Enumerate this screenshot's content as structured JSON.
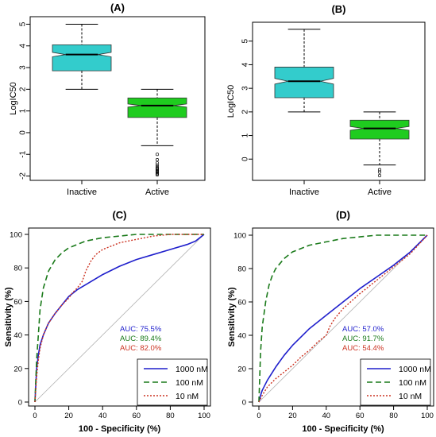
{
  "colors": {
    "cyan": "#33cccc",
    "green": "#1fcc1f",
    "blue": "#1f1fcc",
    "darkgreen": "#1a7a1a",
    "red": "#cc3322",
    "axis": "#000000",
    "diag": "#b0b0b0"
  },
  "chart_data": [
    {
      "panel": "(A)",
      "type": "box",
      "ylabel": "LogIC50",
      "ylim": [
        -2.2,
        5.2
      ],
      "yticks": [
        "-2",
        "-1",
        "0",
        "1",
        "2",
        "3",
        "4",
        "5"
      ],
      "notched": true,
      "categories": [
        "Inactive",
        "Active"
      ],
      "boxes": [
        {
          "category": "Inactive",
          "color": "cyan",
          "min": 2.0,
          "q1": 2.85,
          "median": 3.6,
          "q3": 4.05,
          "max": 5.0,
          "notch": [
            3.5,
            3.7
          ],
          "outliers": []
        },
        {
          "category": "Active",
          "color": "green",
          "min": -0.6,
          "q1": 0.7,
          "median": 1.25,
          "q3": 1.6,
          "max": 2.0,
          "notch": [
            1.18,
            1.32
          ],
          "outliers": [
            -1.0,
            -1.25,
            -1.4,
            -1.5,
            -1.58,
            -1.65,
            -1.7,
            -1.75,
            -1.8,
            -1.85,
            -1.9,
            -1.95
          ]
        }
      ]
    },
    {
      "panel": "(B)",
      "type": "box",
      "ylabel": "LogIC50",
      "ylim": [
        -0.8,
        5.8
      ],
      "yticks": [
        "0",
        "1",
        "2",
        "3",
        "4",
        "5"
      ],
      "notched": true,
      "categories": [
        "Inactive",
        "Active"
      ],
      "boxes": [
        {
          "category": "Inactive",
          "color": "cyan",
          "min": 2.0,
          "q1": 2.6,
          "median": 3.3,
          "q3": 3.9,
          "max": 5.5,
          "notch": [
            3.18,
            3.42
          ],
          "outliers": []
        },
        {
          "category": "Active",
          "color": "green",
          "min": -0.25,
          "q1": 0.85,
          "median": 1.3,
          "q3": 1.65,
          "max": 2.0,
          "notch": [
            1.22,
            1.38
          ],
          "outliers": [
            -0.45,
            -0.55,
            -0.7
          ]
        }
      ]
    },
    {
      "panel": "(C)",
      "type": "line",
      "xlabel": "100 - Specificity (%)",
      "ylabel": "Sensitivity (%)",
      "xlim": [
        0,
        100
      ],
      "ylim": [
        0,
        100
      ],
      "xticks": [
        "0",
        "20",
        "40",
        "60",
        "80",
        "100"
      ],
      "yticks": [
        "0",
        "20",
        "40",
        "60",
        "80",
        "100"
      ],
      "auc": [
        "AUC: 75.5%",
        "AUC: 89.4%",
        "AUC: 82.0%"
      ],
      "legend": [
        "1000 nM",
        "100 nM",
        "10 nM"
      ],
      "legend_position": "bottom-right",
      "series": [
        {
          "name": "1000 nM",
          "color": "blue",
          "style": "solid",
          "x": [
            0,
            1,
            2,
            3,
            5,
            8,
            12,
            16,
            20,
            25,
            30,
            40,
            50,
            60,
            70,
            80,
            90,
            95,
            100
          ],
          "y": [
            0,
            20,
            28,
            34,
            40,
            47,
            53,
            58,
            63,
            67,
            70,
            76,
            81,
            85,
            88,
            91,
            94,
            96,
            100
          ]
        },
        {
          "name": "100 nM",
          "color": "darkgreen",
          "style": "dashed",
          "x": [
            0,
            1,
            2,
            3,
            5,
            8,
            12,
            16,
            20,
            25,
            30,
            40,
            50,
            60,
            70,
            80,
            100
          ],
          "y": [
            0,
            25,
            40,
            55,
            68,
            78,
            85,
            89,
            92,
            94,
            96,
            98,
            99,
            100,
            100,
            100,
            100
          ]
        },
        {
          "name": "10 nM",
          "color": "red",
          "style": "dotted",
          "x": [
            0,
            1,
            2,
            3,
            5,
            8,
            12,
            16,
            20,
            22,
            25,
            28,
            30,
            33,
            36,
            40,
            45,
            50,
            55,
            60,
            65,
            70,
            80,
            90,
            100
          ],
          "y": [
            0,
            15,
            25,
            32,
            40,
            47,
            53,
            58,
            62,
            65,
            68,
            72,
            78,
            84,
            88,
            91,
            93,
            95,
            96,
            97,
            98,
            99,
            100,
            100,
            100
          ]
        }
      ]
    },
    {
      "panel": "(D)",
      "type": "line",
      "xlabel": "100 - Specificity (%)",
      "ylabel": "Sensitivity (%)",
      "xlim": [
        0,
        100
      ],
      "ylim": [
        0,
        100
      ],
      "xticks": [
        "0",
        "20",
        "40",
        "60",
        "80",
        "100"
      ],
      "yticks": [
        "0",
        "20",
        "40",
        "60",
        "80",
        "100"
      ],
      "auc": [
        "AUC: 57.0%",
        "AUC: 91.7%",
        "AUC: 54.4%"
      ],
      "legend": [
        "1000 nM",
        "100 nM",
        "10 nM"
      ],
      "legend_position": "bottom-right",
      "series": [
        {
          "name": "1000 nM",
          "color": "blue",
          "style": "solid",
          "x": [
            0,
            1,
            2,
            5,
            10,
            15,
            20,
            30,
            40,
            50,
            60,
            70,
            80,
            90,
            100
          ],
          "y": [
            0,
            4,
            7,
            13,
            21,
            28,
            34,
            44,
            52,
            60,
            68,
            75,
            82,
            90,
            100
          ]
        },
        {
          "name": "100 nM",
          "color": "darkgreen",
          "style": "dashed",
          "x": [
            0,
            1,
            2,
            4,
            6,
            8,
            10,
            15,
            20,
            30,
            40,
            50,
            60,
            70,
            80,
            90,
            100
          ],
          "y": [
            0,
            30,
            45,
            60,
            70,
            76,
            80,
            86,
            90,
            94,
            96,
            98,
            99,
            100,
            100,
            100,
            100
          ]
        },
        {
          "name": "10 nM",
          "color": "red",
          "style": "dotted",
          "x": [
            0,
            2,
            5,
            10,
            15,
            20,
            25,
            30,
            35,
            40,
            42,
            45,
            50,
            60,
            70,
            80,
            90,
            100
          ],
          "y": [
            0,
            4,
            9,
            14,
            18,
            22,
            27,
            31,
            36,
            40,
            45,
            50,
            56,
            65,
            73,
            81,
            89,
            100
          ]
        }
      ]
    }
  ]
}
